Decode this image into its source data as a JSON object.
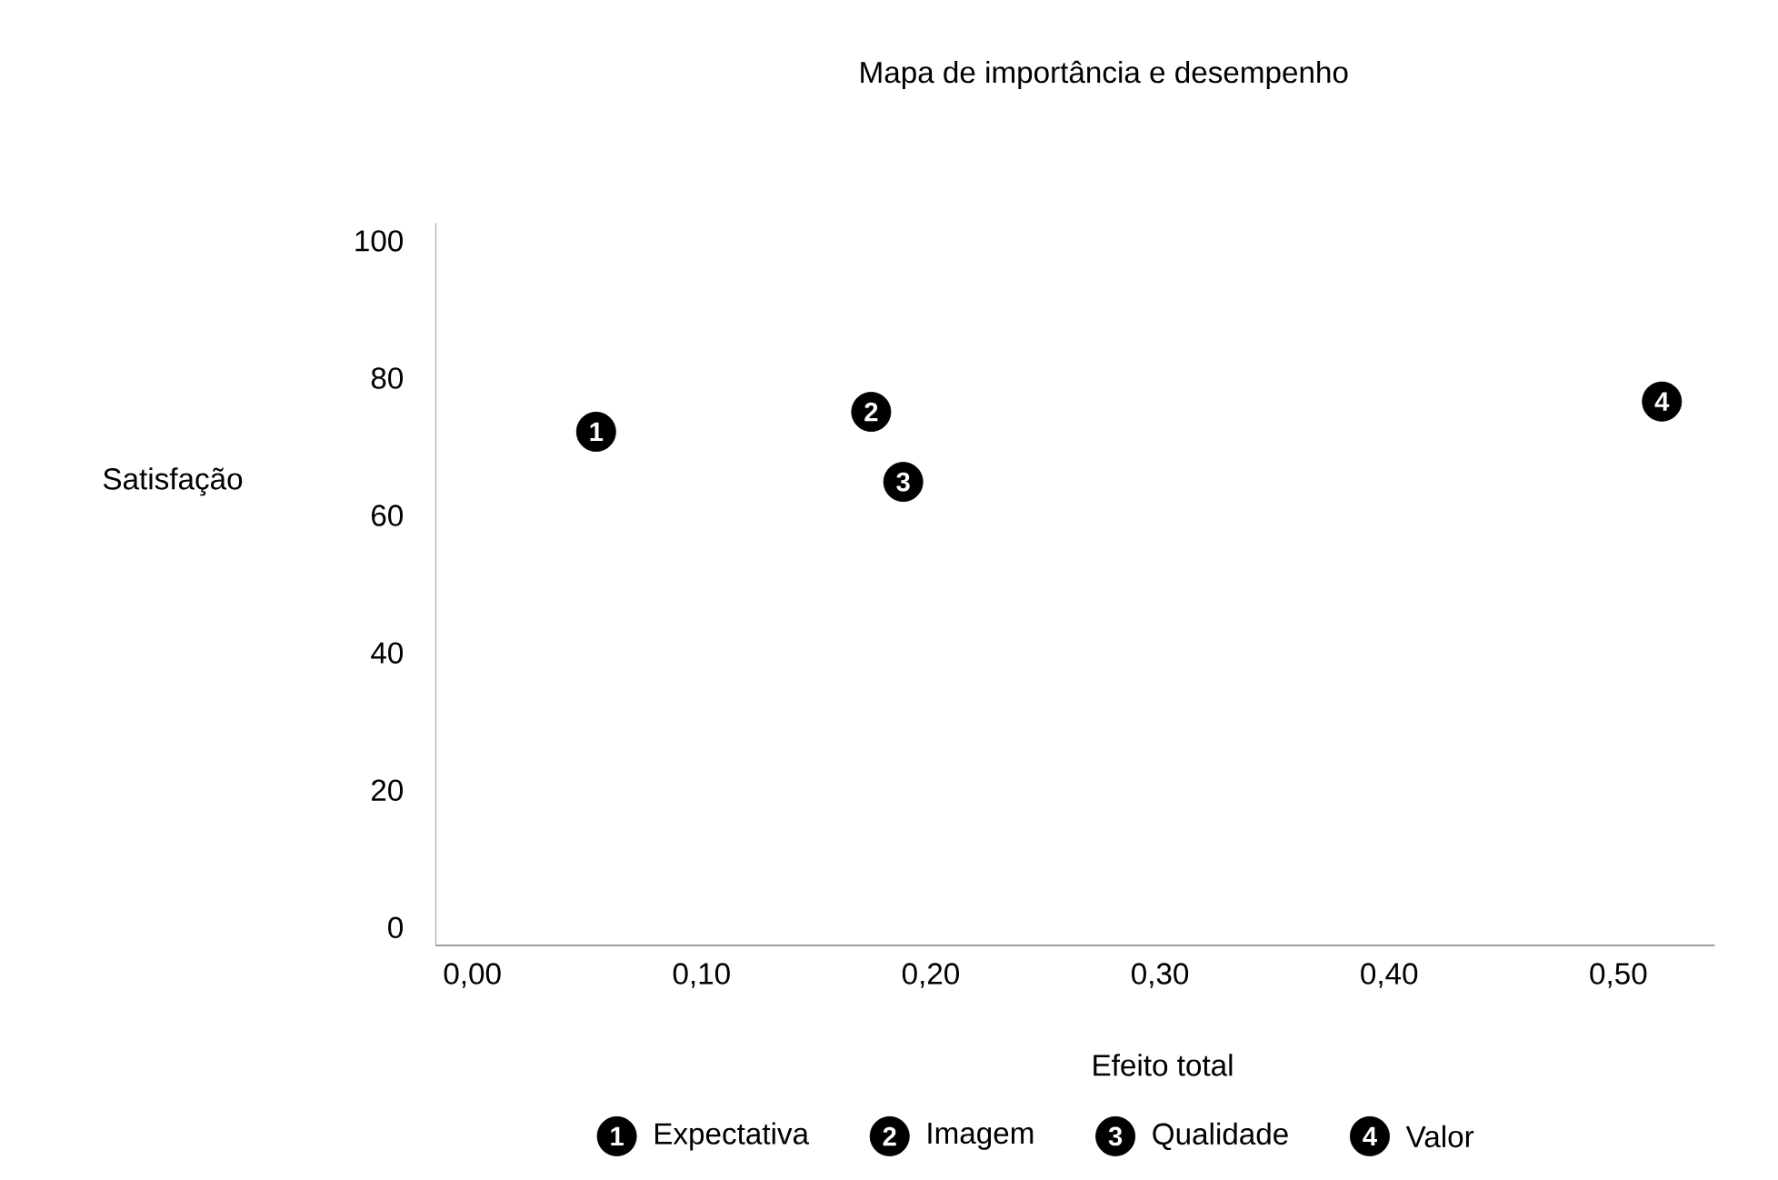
{
  "chart_data": {
    "type": "scatter",
    "title": "Mapa de importância e desempenho",
    "xlabel": "Efeito total",
    "ylabel": "Satisfação",
    "xlim": [
      -0.016,
      0.542
    ],
    "ylim": [
      -2.6,
      102.6
    ],
    "xticks": [
      {
        "value": 0,
        "label": "0,00"
      },
      {
        "value": 0.1,
        "label": "0,10"
      },
      {
        "value": 0.2,
        "label": "0,20"
      },
      {
        "value": 0.3,
        "label": "0,30"
      },
      {
        "value": 0.4,
        "label": "0,40"
      },
      {
        "value": 0.5,
        "label": "0,50"
      }
    ],
    "yticks": [
      0,
      20,
      40,
      60,
      80,
      100
    ],
    "grid": false,
    "legend": "bottom",
    "marker": "circle",
    "series": [
      {
        "name": "Expectativa",
        "color": "#000000",
        "x": [
          0.054
        ],
        "values": [
          72.2
        ]
      },
      {
        "name": "Imagem",
        "color": "#000000",
        "x": [
          0.174
        ],
        "values": [
          75.1
        ]
      },
      {
        "name": "Qualidade",
        "color": "#000000",
        "x": [
          0.188
        ],
        "values": [
          64.9
        ]
      },
      {
        "name": "Valor",
        "color": "#000000",
        "x": [
          0.519
        ],
        "values": [
          76.6
        ]
      }
    ],
    "annotations": [
      {
        "text": "1",
        "x": 0.054,
        "y": 72.2
      },
      {
        "text": "2",
        "x": 0.174,
        "y": 75.1
      },
      {
        "text": "3",
        "x": 0.188,
        "y": 64.9
      },
      {
        "text": "4",
        "x": 0.519,
        "y": 76.6
      }
    ]
  }
}
